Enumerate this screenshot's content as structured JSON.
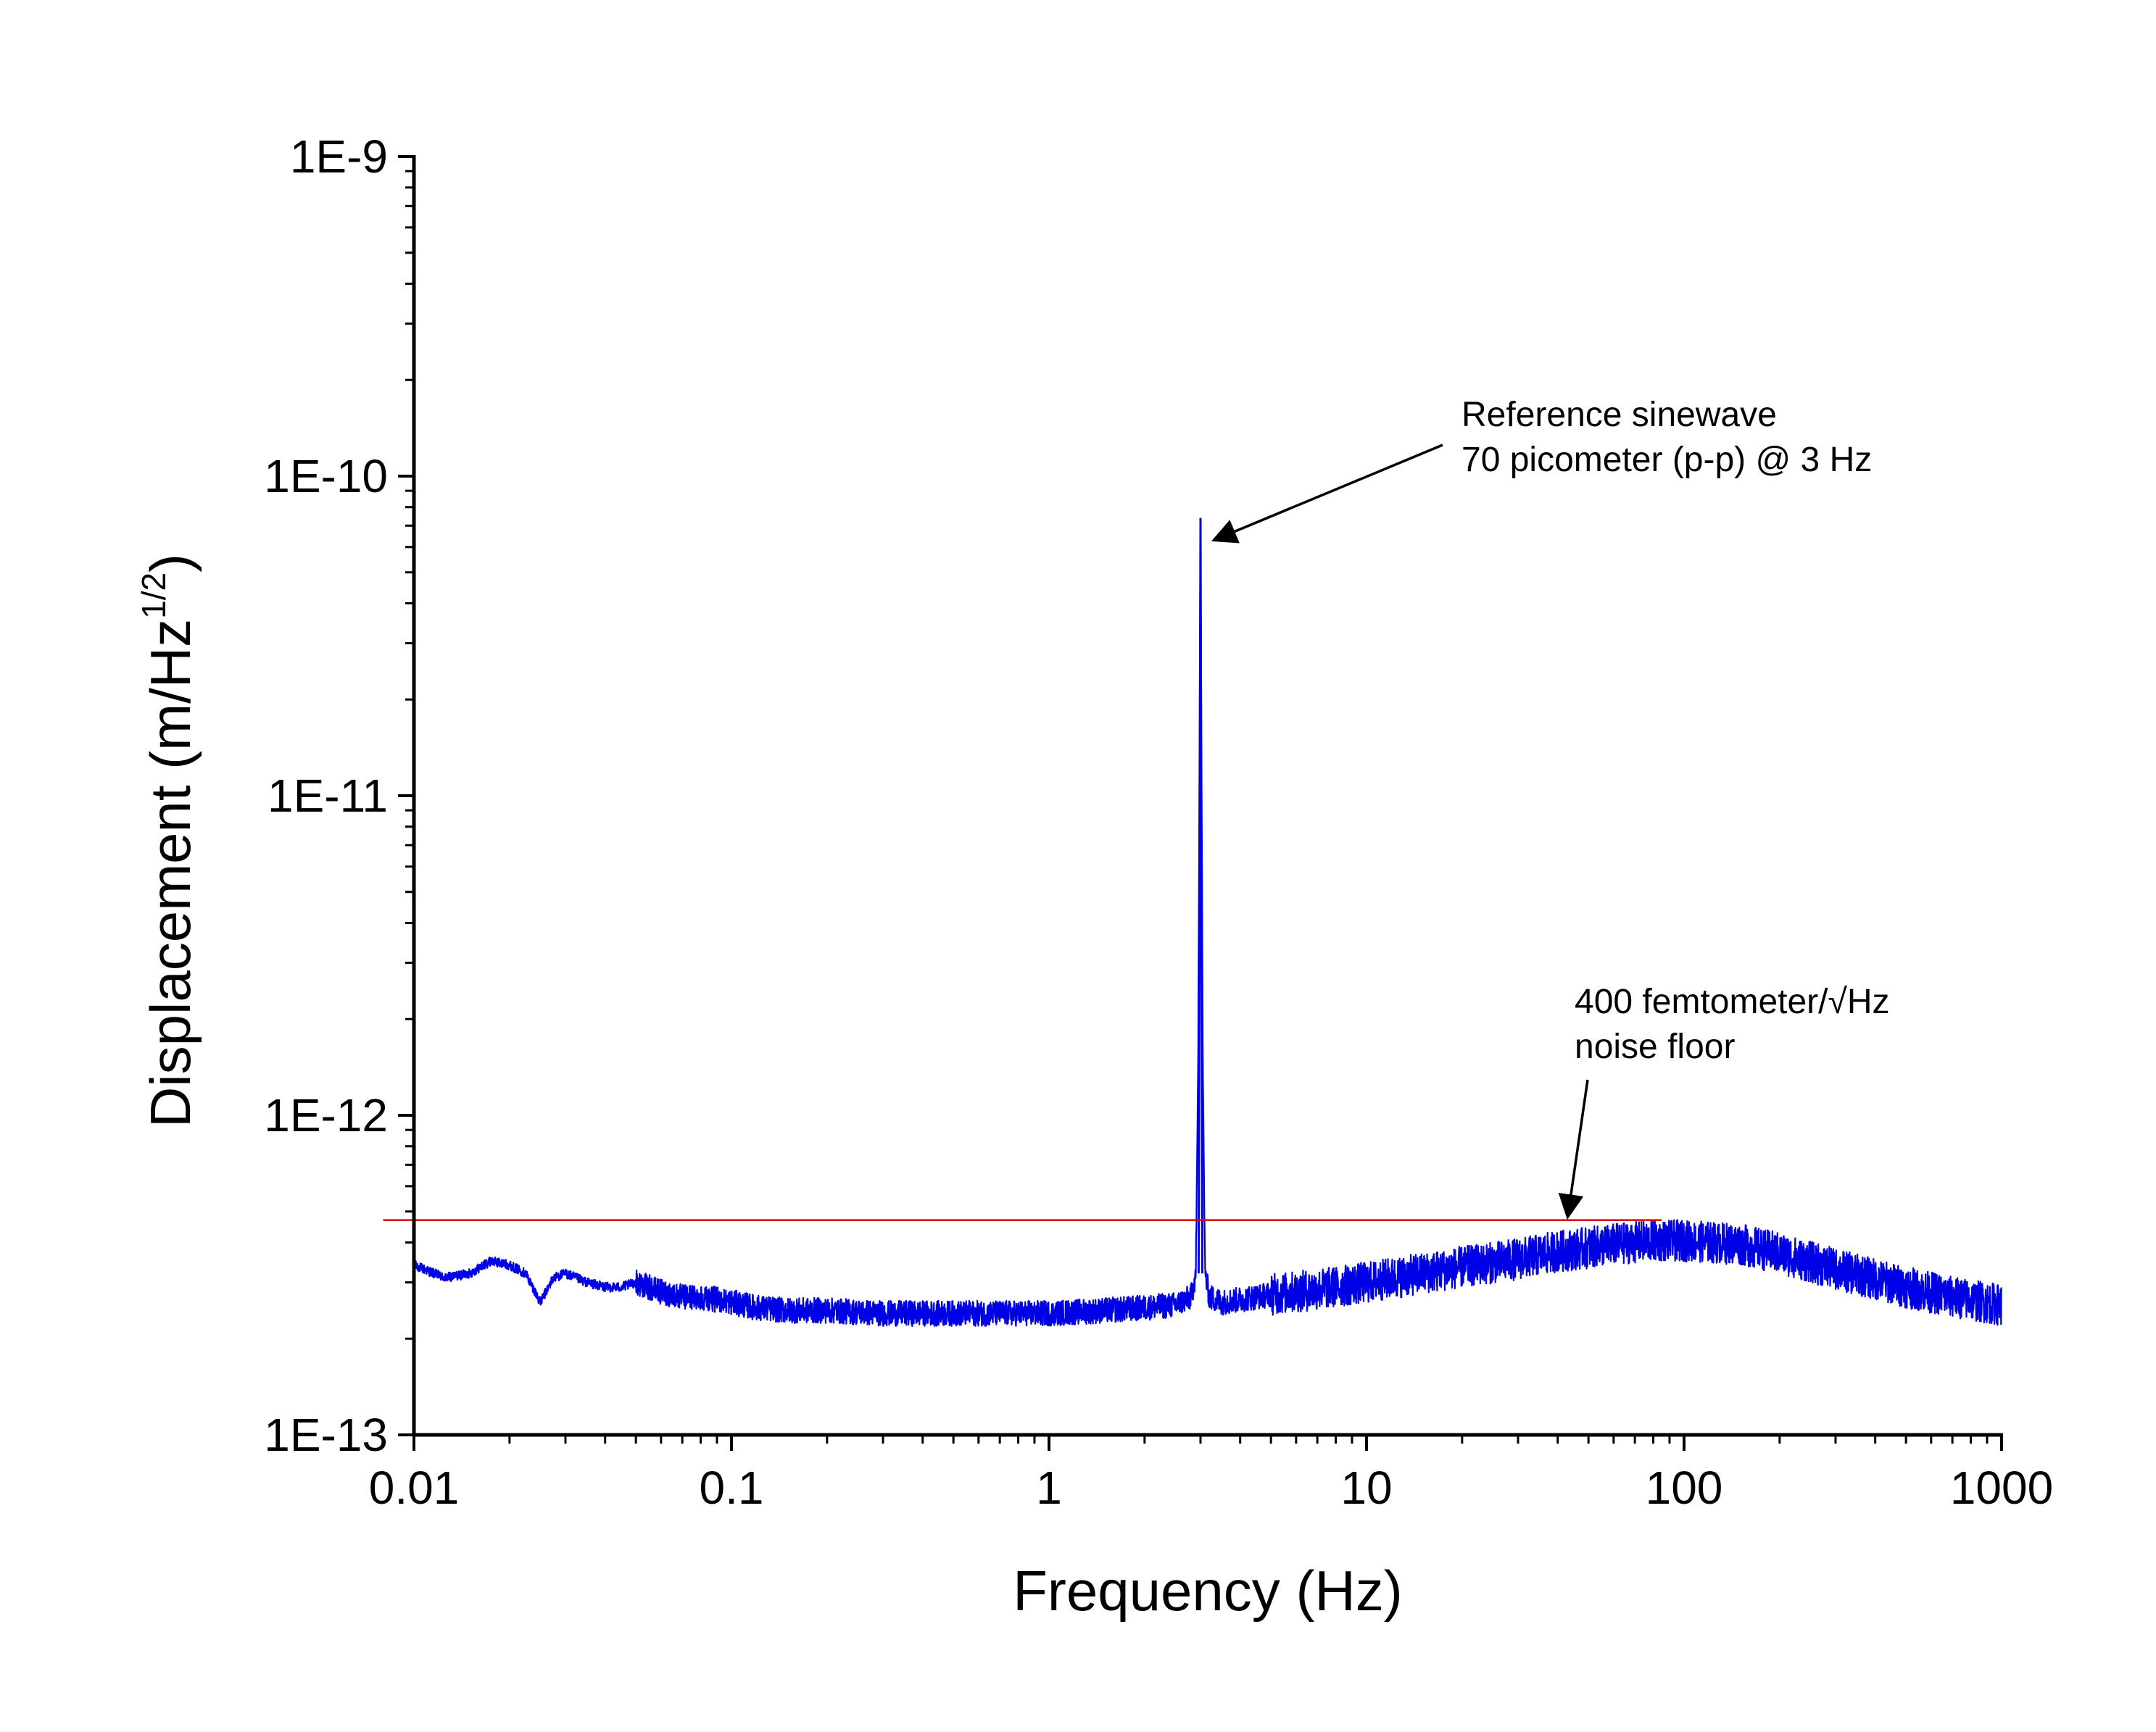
{
  "chart_data": {
    "type": "line",
    "title": "",
    "xlabel": "Frequency (Hz)",
    "ylabel": "Displacement (m/Hz",
    "ylabel_sup": "1/2",
    "ylabel_end": ")",
    "xscale": "log",
    "yscale": "log",
    "xlim": [
      0.01,
      1000
    ],
    "ylim": [
      1e-13,
      1e-09
    ],
    "x_ticks": [
      {
        "value": 0.01,
        "label": "0.01"
      },
      {
        "value": 0.1,
        "label": "0.1"
      },
      {
        "value": 1,
        "label": "1"
      },
      {
        "value": 10,
        "label": "10"
      },
      {
        "value": 100,
        "label": "100"
      },
      {
        "value": 1000,
        "label": "1000"
      }
    ],
    "y_ticks": [
      {
        "value": 1e-13,
        "label": "1E-13"
      },
      {
        "value": 1e-12,
        "label": "1E-12"
      },
      {
        "value": 1e-11,
        "label": "1E-11"
      },
      {
        "value": 1e-10,
        "label": "1E-10"
      },
      {
        "value": 1e-09,
        "label": "1E-9"
      }
    ],
    "grid": false,
    "legend": "none",
    "colors": {
      "spectrum": "#0000e6",
      "noise_floor": "#e00000",
      "axis": "#000000"
    },
    "series": [
      {
        "color": "#0000e6",
        "x": [
          0.01,
          0.0125,
          0.015,
          0.0175,
          0.02,
          0.0225,
          0.025,
          0.0275,
          0.03,
          0.035,
          0.04,
          0.045,
          0.05,
          0.06,
          0.07,
          0.08,
          0.09,
          0.1,
          0.12,
          0.15,
          0.2,
          0.3,
          0.5,
          0.7,
          1,
          1.5,
          2,
          2.5,
          2.8,
          2.9,
          2.95,
          3.0,
          3.05,
          3.1,
          3.2,
          3.5,
          4,
          5,
          7,
          10,
          15,
          20,
          30,
          40,
          50,
          60,
          80,
          100,
          150,
          200,
          300,
          500,
          700,
          1000
        ],
        "y": [
          3.4e-13,
          3.1e-13,
          3.2e-13,
          3.5e-13,
          3.4e-13,
          3.2e-13,
          2.6e-13,
          3.1e-13,
          3.2e-13,
          3e-13,
          2.9e-13,
          2.9e-13,
          3e-13,
          2.8e-13,
          2.7e-13,
          2.7e-13,
          2.65e-13,
          2.6e-13,
          2.5e-13,
          2.45e-13,
          2.45e-13,
          2.4e-13,
          2.4e-13,
          2.4e-13,
          2.4e-13,
          2.45e-13,
          2.5e-13,
          2.55e-13,
          2.7e-13,
          3.2e-13,
          1.5e-12,
          7.4e-11,
          1.5e-12,
          3.2e-13,
          2.7e-13,
          2.6e-13,
          2.65e-13,
          2.75e-13,
          2.85e-13,
          3e-13,
          3.2e-13,
          3.35e-13,
          3.55e-13,
          3.75e-13,
          3.85e-13,
          3.95e-13,
          4.05e-13,
          4.05e-13,
          3.95e-13,
          3.7e-13,
          3.3e-13,
          2.9e-13,
          2.7e-13,
          2.55e-13
        ]
      }
    ],
    "reference_lines": [
      {
        "y": 4.7e-13,
        "x_start": 0.008,
        "x_end": 85,
        "color": "#e00000"
      }
    ],
    "annotations": [
      {
        "lines": [
          "Reference sinewave",
          "70 picometer (p-p) @ 3 Hz"
        ],
        "arrow_to": {
          "x": 3.3,
          "y": 6.3e-11
        }
      },
      {
        "lines": [
          "400 femtometer/√Hz",
          "noise floor"
        ],
        "arrow_to": {
          "x": 43,
          "y": 4.8e-13
        }
      }
    ]
  }
}
